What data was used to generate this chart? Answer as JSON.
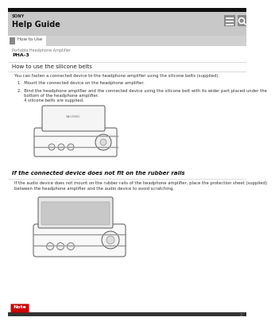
{
  "bg_color": "#e8e8e8",
  "header_bg": "#c8c8c8",
  "content_bg": "#ffffff",
  "tab_bar_bg": "#d0d0d0",
  "tab_bg": "#ffffff",
  "sony_text": "SONY",
  "title_text": "Help Guide",
  "tab_text": "How to Use",
  "breadcrumb1": "Portable Headphone Amplifier",
  "breadcrumb2": "PHA-3",
  "section_title": "How to use the silicone belts",
  "body1": "You can fasten a connected device to the headphone amplifier using the silicone belts (supplied).",
  "item1": "1.  Mount the connected device on the headphone amplifier.",
  "item2_line1": "2.  Bind the headphone amplifier and the connected device using the silicone belt with its wider part placed under the",
  "item2_line2": "     bottom of the headphone amplifier.",
  "item2_line3": "     4 silicone belts are supplied.",
  "section2_title": "If the connected device does not fit on the rubber rails",
  "section2_body1": "If the audio device does not mount on the rubber rails of the headphone amplifier, place the protection sheet (supplied)",
  "section2_body2": "between the headphone amplifier and the audio device to avoid scratching.",
  "note_bg": "#cc0000",
  "note_text": "Note",
  "page_num": "2",
  "line_color": "#cccccc",
  "text_color": "#333333",
  "small_text_color": "#777777",
  "icon_bg": "#888888"
}
